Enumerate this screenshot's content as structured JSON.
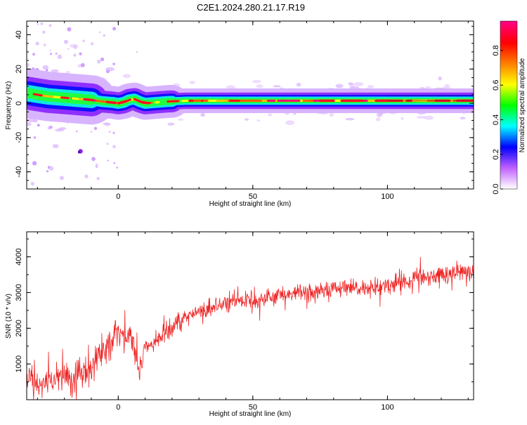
{
  "title": "C2E1.2024.280.21.17.R19",
  "chart_data": [
    {
      "type": "heatmap",
      "title": "C2E1.2024.280.21.17.R19",
      "xlabel": "Height of straight line (km)",
      "ylabel": "Frequency (Hz)",
      "xlim": [
        -34,
        132
      ],
      "ylim": [
        -50,
        48
      ],
      "x_ticks": [
        0,
        50,
        100
      ],
      "y_ticks": [
        -40,
        -20,
        0,
        20,
        40
      ],
      "ridge": {
        "x": [
          -34,
          -30,
          -26,
          -22,
          -18,
          -14,
          -10,
          -6,
          -2,
          0,
          2,
          4,
          6,
          8,
          10,
          14,
          18,
          25,
          40,
          60,
          80,
          100,
          120,
          132
        ],
        "y": [
          6,
          5,
          4,
          3.5,
          3,
          2.5,
          2,
          1,
          0.5,
          0,
          0.5,
          2,
          2.5,
          1,
          0,
          0.5,
          1,
          1.5,
          1.5,
          1.5,
          1.5,
          1.5,
          1.5,
          1.5
        ]
      },
      "colorbar": {
        "label": "Normalized spectral amplitude",
        "range": [
          0,
          1
        ],
        "ticks": [
          0.0,
          0.2,
          0.4,
          0.6,
          0.8
        ],
        "tick_labels": [
          "0.0",
          "0.2",
          "0.4",
          "0.6",
          "0.8"
        ],
        "colors": [
          "#ffffff",
          "#c060ff",
          "#0000ff",
          "#00ffff",
          "#00ff00",
          "#ffff00",
          "#ff8000",
          "#ff0000",
          "#ff0080"
        ]
      }
    },
    {
      "type": "line",
      "xlabel": "Height of straight line (km)",
      "ylabel": "SNR (10 * v/v)",
      "xlim": [
        -34,
        132
      ],
      "ylim": [
        0,
        4700
      ],
      "x_ticks": [
        0,
        50,
        100
      ],
      "y_ticks": [
        1000,
        2000,
        3000,
        4000
      ],
      "series": [
        {
          "color": "#ee2222",
          "trend_x": [
            -34,
            -30,
            -25,
            -20,
            -15,
            -10,
            -5,
            0,
            5,
            8,
            10,
            15,
            20,
            25,
            30,
            40,
            50,
            60,
            70,
            80,
            90,
            100,
            110,
            120,
            130,
            132
          ],
          "trend_y": [
            500,
            450,
            450,
            650,
            700,
            1000,
            1500,
            1800,
            1700,
            800,
            1500,
            1800,
            2050,
            2250,
            2450,
            2700,
            2800,
            2950,
            3000,
            3100,
            3100,
            3200,
            3400,
            3500,
            3600,
            3500
          ]
        }
      ]
    }
  ]
}
